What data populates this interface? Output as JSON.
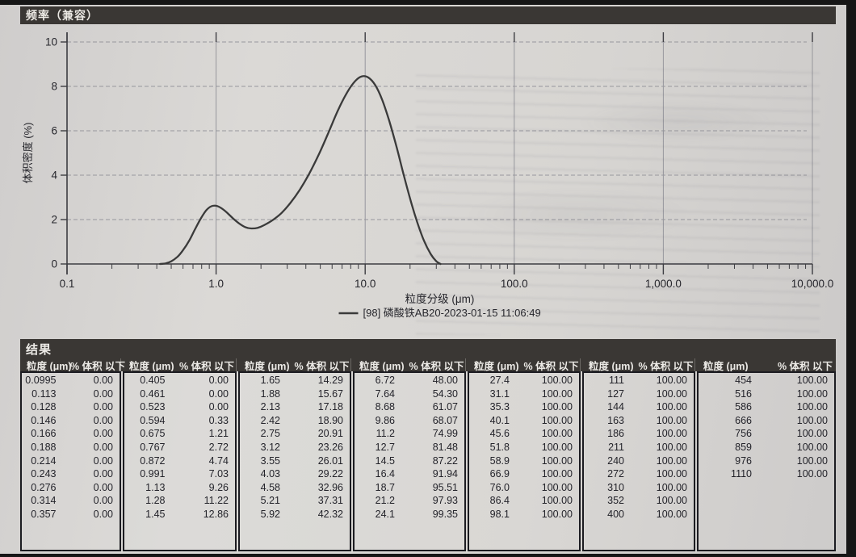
{
  "colors": {
    "header_bar": "#3a3734",
    "paper": "#d7d5d2",
    "curve": "#3a3a3a",
    "grid": "#97979d",
    "axis": "#3d3d42",
    "text_dark": "#26262c",
    "header_text": "#eceae6"
  },
  "chart_data": {
    "type": "line",
    "title": "频率（兼容）",
    "xlabel": "粒度分级 (μm)",
    "ylabel": "体积密度 (%)",
    "x_scale": "log",
    "xlim": [
      0.1,
      10000
    ],
    "ylim": [
      0,
      10
    ],
    "x_tick_values": [
      0.1,
      1,
      10,
      100,
      1000,
      10000
    ],
    "x_tick_labels": [
      "0.1",
      "1.0",
      "10.0",
      "100.0",
      "1,000.0",
      "10,000.0"
    ],
    "y_ticks": [
      0,
      2,
      4,
      6,
      8,
      10
    ],
    "grid": true,
    "legend_position": "bottom-center",
    "series": [
      {
        "name": "[98] 磷酸铁AB20-2023-01-15 11:06:49",
        "color": "#3a3a3a",
        "points": [
          [
            0.42,
            0
          ],
          [
            0.46,
            0.03
          ],
          [
            0.5,
            0.12
          ],
          [
            0.55,
            0.32
          ],
          [
            0.6,
            0.62
          ],
          [
            0.66,
            1.05
          ],
          [
            0.72,
            1.55
          ],
          [
            0.79,
            2.05
          ],
          [
            0.86,
            2.42
          ],
          [
            0.93,
            2.6
          ],
          [
            1.0,
            2.62
          ],
          [
            1.08,
            2.52
          ],
          [
            1.18,
            2.32
          ],
          [
            1.3,
            2.05
          ],
          [
            1.43,
            1.82
          ],
          [
            1.57,
            1.66
          ],
          [
            1.72,
            1.6
          ],
          [
            1.9,
            1.63
          ],
          [
            2.1,
            1.75
          ],
          [
            2.4,
            1.98
          ],
          [
            2.75,
            2.3
          ],
          [
            3.15,
            2.75
          ],
          [
            3.65,
            3.35
          ],
          [
            4.2,
            4.05
          ],
          [
            4.9,
            4.95
          ],
          [
            5.7,
            5.95
          ],
          [
            6.6,
            6.95
          ],
          [
            7.6,
            7.75
          ],
          [
            8.6,
            8.25
          ],
          [
            9.5,
            8.45
          ],
          [
            10.5,
            8.4
          ],
          [
            11.7,
            8.05
          ],
          [
            13.0,
            7.4
          ],
          [
            14.5,
            6.45
          ],
          [
            16.2,
            5.3
          ],
          [
            18.0,
            4.1
          ],
          [
            20.0,
            2.95
          ],
          [
            22.3,
            1.9
          ],
          [
            24.8,
            1.05
          ],
          [
            27.5,
            0.45
          ],
          [
            30.0,
            0.12
          ],
          [
            32.0,
            0
          ]
        ]
      }
    ]
  },
  "results": {
    "title": "结果",
    "col_headers": {
      "size": "粒度 (μm)",
      "pct": "% 体积 以下"
    },
    "groups": [
      {
        "rows": [
          [
            "0.0995",
            "0.00"
          ],
          [
            "0.113",
            "0.00"
          ],
          [
            "0.128",
            "0.00"
          ],
          [
            "0.146",
            "0.00"
          ],
          [
            "0.166",
            "0.00"
          ],
          [
            "0.188",
            "0.00"
          ],
          [
            "0.214",
            "0.00"
          ],
          [
            "0.243",
            "0.00"
          ],
          [
            "0.276",
            "0.00"
          ],
          [
            "0.314",
            "0.00"
          ],
          [
            "0.357",
            "0.00"
          ]
        ]
      },
      {
        "rows": [
          [
            "0.405",
            "0.00"
          ],
          [
            "0.461",
            "0.00"
          ],
          [
            "0.523",
            "0.00"
          ],
          [
            "0.594",
            "0.33"
          ],
          [
            "0.675",
            "1.21"
          ],
          [
            "0.767",
            "2.72"
          ],
          [
            "0.872",
            "4.74"
          ],
          [
            "0.991",
            "7.03"
          ],
          [
            "1.13",
            "9.26"
          ],
          [
            "1.28",
            "11.22"
          ],
          [
            "1.45",
            "12.86"
          ]
        ]
      },
      {
        "rows": [
          [
            "1.65",
            "14.29"
          ],
          [
            "1.88",
            "15.67"
          ],
          [
            "2.13",
            "17.18"
          ],
          [
            "2.42",
            "18.90"
          ],
          [
            "2.75",
            "20.91"
          ],
          [
            "3.12",
            "23.26"
          ],
          [
            "3.55",
            "26.01"
          ],
          [
            "4.03",
            "29.22"
          ],
          [
            "4.58",
            "32.96"
          ],
          [
            "5.21",
            "37.31"
          ],
          [
            "5.92",
            "42.32"
          ]
        ]
      },
      {
        "rows": [
          [
            "6.72",
            "48.00"
          ],
          [
            "7.64",
            "54.30"
          ],
          [
            "8.68",
            "61.07"
          ],
          [
            "9.86",
            "68.07"
          ],
          [
            "11.2",
            "74.99"
          ],
          [
            "12.7",
            "81.48"
          ],
          [
            "14.5",
            "87.22"
          ],
          [
            "16.4",
            "91.94"
          ],
          [
            "18.7",
            "95.51"
          ],
          [
            "21.2",
            "97.93"
          ],
          [
            "24.1",
            "99.35"
          ]
        ]
      },
      {
        "rows": [
          [
            "27.4",
            "100.00"
          ],
          [
            "31.1",
            "100.00"
          ],
          [
            "35.3",
            "100.00"
          ],
          [
            "40.1",
            "100.00"
          ],
          [
            "45.6",
            "100.00"
          ],
          [
            "51.8",
            "100.00"
          ],
          [
            "58.9",
            "100.00"
          ],
          [
            "66.9",
            "100.00"
          ],
          [
            "76.0",
            "100.00"
          ],
          [
            "86.4",
            "100.00"
          ],
          [
            "98.1",
            "100.00"
          ]
        ]
      },
      {
        "rows": [
          [
            "111",
            "100.00"
          ],
          [
            "127",
            "100.00"
          ],
          [
            "144",
            "100.00"
          ],
          [
            "163",
            "100.00"
          ],
          [
            "186",
            "100.00"
          ],
          [
            "211",
            "100.00"
          ],
          [
            "240",
            "100.00"
          ],
          [
            "272",
            "100.00"
          ],
          [
            "310",
            "100.00"
          ],
          [
            "352",
            "100.00"
          ],
          [
            "400",
            "100.00"
          ]
        ]
      },
      {
        "rows": [
          [
            "454",
            "100.00"
          ],
          [
            "516",
            "100.00"
          ],
          [
            "586",
            "100.00"
          ],
          [
            "666",
            "100.00"
          ],
          [
            "756",
            "100.00"
          ],
          [
            "859",
            "100.00"
          ],
          [
            "976",
            "100.00"
          ],
          [
            "1110",
            "100.00"
          ]
        ]
      }
    ]
  }
}
